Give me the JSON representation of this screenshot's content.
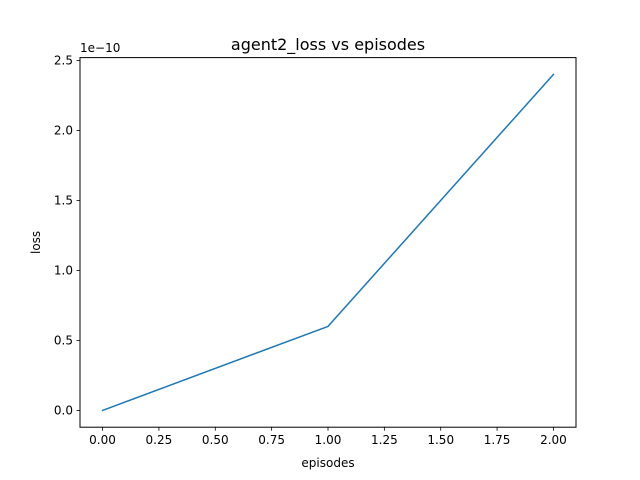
{
  "chart_data": {
    "type": "line",
    "title": "agent2_loss vs episodes",
    "xlabel": "episodes",
    "ylabel": "loss",
    "y_offset_label": "1e−10",
    "x_ticks": [
      0.0,
      0.25,
      0.5,
      0.75,
      1.0,
      1.25,
      1.5,
      1.75,
      2.0
    ],
    "x_tick_labels": [
      "0.00",
      "0.25",
      "0.50",
      "0.75",
      "1.00",
      "1.25",
      "1.50",
      "1.75",
      "2.00"
    ],
    "y_ticks": [
      0.0,
      0.5,
      1.0,
      1.5,
      2.0,
      2.5
    ],
    "y_tick_labels": [
      "0.0",
      "0.5",
      "1.0",
      "1.5",
      "2.0",
      "2.5"
    ],
    "xlim": [
      -0.1,
      2.1
    ],
    "ylim": [
      -0.12,
      2.52
    ],
    "grid": false,
    "series": [
      {
        "color": "#1f77b4",
        "x": [
          0,
          1,
          2
        ],
        "y": [
          0.0,
          0.6,
          2.4
        ]
      }
    ]
  }
}
